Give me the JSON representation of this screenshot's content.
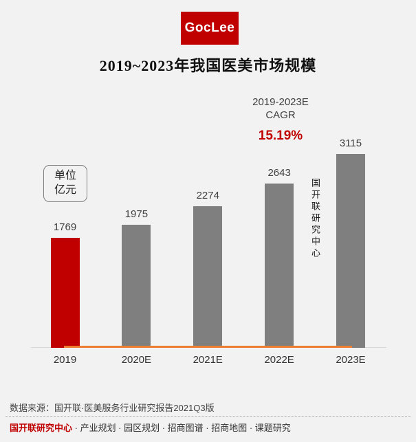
{
  "page": {
    "background": "#F2F2F2",
    "accent_red": "#C00000",
    "bar_gray": "#7F7F7F",
    "trend_orange": "#ED7D31"
  },
  "logo": {
    "text": "GocLee",
    "bg_color": "#C00000"
  },
  "title": "2019~2023年我国医美市场规模",
  "cagr": {
    "period": "2019-2023E",
    "label": "CAGR",
    "value": "15.19%",
    "value_color": "#C00000"
  },
  "unit_box": {
    "line1": "单位",
    "line2": "亿元"
  },
  "watermark_vertical": "国开联研究中心",
  "chart_data": {
    "type": "bar",
    "categories": [
      "2019",
      "2020E",
      "2021E",
      "2022E",
      "2023E"
    ],
    "values": [
      1769,
      1975,
      2274,
      2643,
      3115
    ],
    "bar_colors": [
      "#C00000",
      "#7F7F7F",
      "#7F7F7F",
      "#7F7F7F",
      "#7F7F7F"
    ],
    "title": "2019~2023年我国医美市场规模",
    "unit": "亿元",
    "ylim": [
      0,
      3400
    ],
    "value_labels_shown": true,
    "grid": false,
    "legend": "none",
    "annotation": "2019-2023E CAGR 15.19%",
    "baseline_color": "#D8D8D8",
    "trend_line_color": "#ED7D31"
  },
  "footer": {
    "source": "数据来源：国开联·医美服务行业研究报告2021Q3版",
    "brand": "国开联研究中心",
    "services": " · 产业规划 · 园区规划 · 招商图谱 · 招商地图 · 课题研究"
  }
}
